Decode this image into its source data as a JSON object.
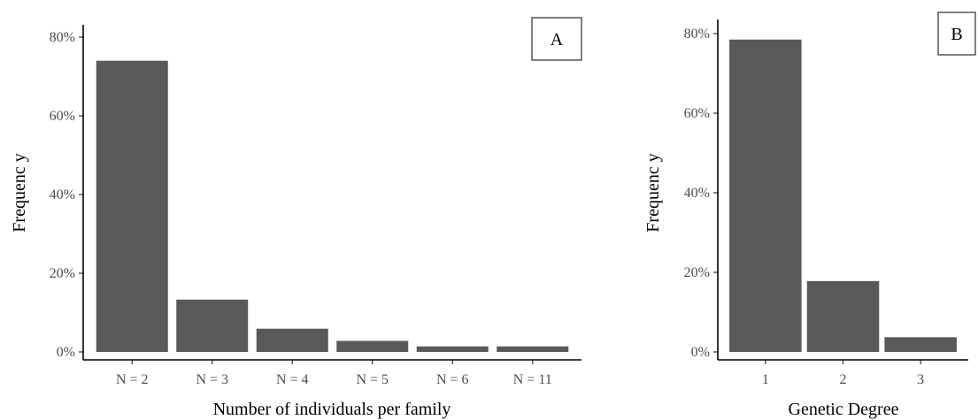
{
  "chart_data": [
    {
      "type": "bar",
      "panel_label": "A",
      "categories": [
        "N = 2",
        "N = 3",
        "N = 4",
        "N = 5",
        "N = 6",
        "N = 11"
      ],
      "values": [
        74,
        13.3,
        5.9,
        2.8,
        1.4,
        1.4
      ],
      "yticks": [
        0,
        20,
        40,
        60,
        80
      ],
      "ytick_labels": [
        "0%",
        "20%",
        "40%",
        "60%",
        "80%"
      ],
      "ylim": [
        0,
        80
      ],
      "xlabel": "Number of individuals per family",
      "ylabel": "Frequenc y",
      "bar_color": "#595959",
      "grid": false
    },
    {
      "type": "bar",
      "panel_label": "B",
      "categories": [
        "1",
        "2",
        "3"
      ],
      "values": [
        78.5,
        17.8,
        3.7
      ],
      "yticks": [
        0,
        20,
        40,
        60,
        80
      ],
      "ytick_labels": [
        "0%",
        "20%",
        "40%",
        "60%",
        "80%"
      ],
      "ylim": [
        0,
        80
      ],
      "xlabel": "Genetic Degree",
      "ylabel": "Frequenc y",
      "bar_color": "#595959",
      "grid": false
    }
  ]
}
